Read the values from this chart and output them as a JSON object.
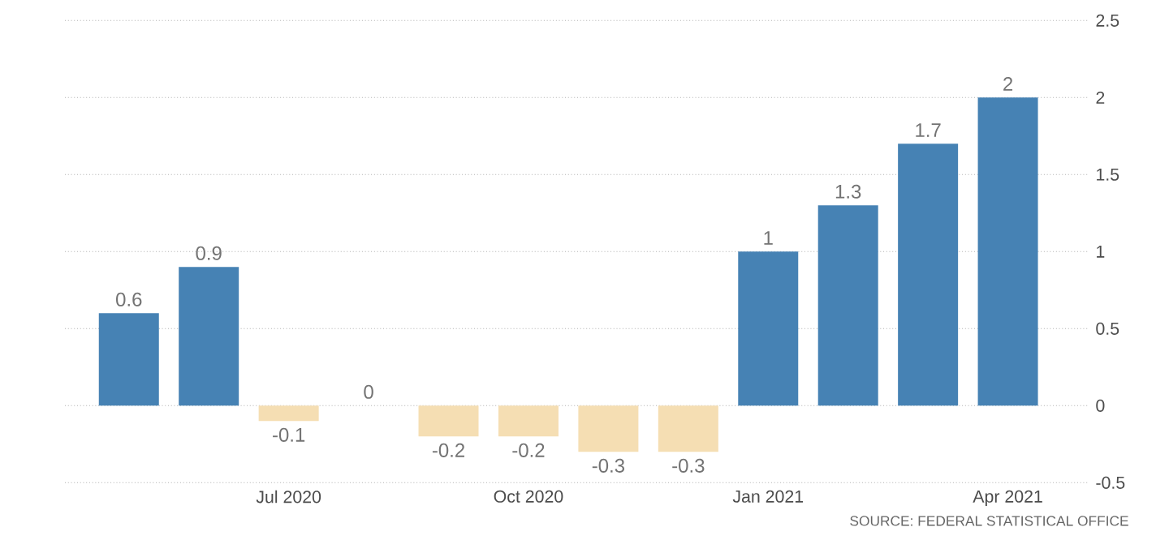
{
  "chart_data": {
    "type": "bar",
    "categories": [
      null,
      null,
      "Jul 2020",
      null,
      null,
      "Oct 2020",
      null,
      null,
      "Jan 2021",
      null,
      null,
      "Apr 2021"
    ],
    "values": [
      0.6,
      0.9,
      -0.1,
      0,
      -0.2,
      -0.2,
      -0.3,
      -0.3,
      1,
      1.3,
      1.7,
      2
    ],
    "colors": [
      "#4682b4",
      "#4682b4",
      "#f5deb3",
      "#f5deb3",
      "#f5deb3",
      "#f5deb3",
      "#f5deb3",
      "#f5deb3",
      "#4682b4",
      "#4682b4",
      "#4682b4",
      "#4682b4"
    ],
    "ylim": [
      -0.5,
      2.5
    ],
    "yticks": [
      -0.5,
      0,
      0.5,
      1,
      1.5,
      2,
      2.5
    ],
    "grid": "y",
    "data_labels": true,
    "annotations": [
      "SOURCE: FEDERAL STATISTICAL OFFICE"
    ]
  }
}
